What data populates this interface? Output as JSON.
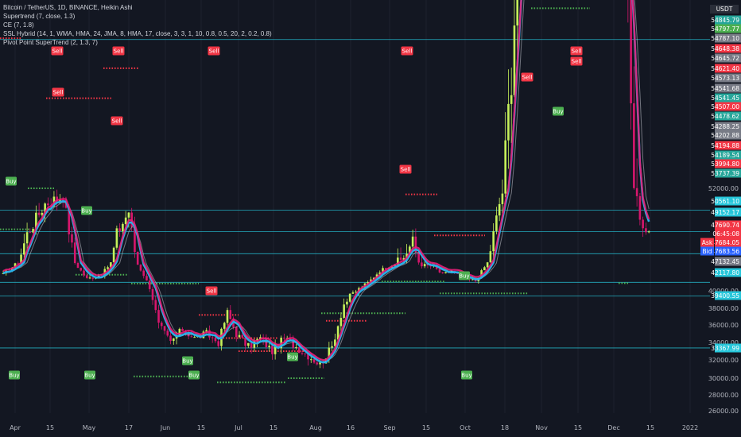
{
  "legend": {
    "title": "Bitcoin / TetherUS, 1D, BINANCE, Heikin Ashi",
    "lines": [
      "Supertrend (7, close, 1.3)",
      "CE (7, 1.8)",
      "SSL Hybrid (14, 1, WMA, HMA, 24, JMA, 8, HMA, 17, close, 3, 3, 1, 10, 0.8, 0.5, 20, 2, 0.2, 0.8)",
      "Pivot Point SuperTrend (2, 1.3, 7)"
    ]
  },
  "colors": {
    "background": "#131722",
    "bull": "#c6f15a",
    "bear": "#d6166c",
    "maBlue": "#2ab0e8",
    "maPink": "#e81e78",
    "hline": "#26c6da",
    "red": "#f23645",
    "green": "#4caf50"
  },
  "chart_data": {
    "type": "candlestick",
    "currency": "USDT",
    "x_ticks": [
      "Apr",
      "15",
      "May",
      "17",
      "Jun",
      "15",
      "Jul",
      "15",
      "Aug",
      "16",
      "Sep",
      "15",
      "Oct",
      "18",
      "Nov",
      "15",
      "Dec",
      "15",
      "2022"
    ],
    "y_ticks": [
      "52000.00",
      "40000.00",
      "38000.00",
      "36000.00",
      "34000.00",
      "32000.00",
      "30000.00",
      "28000.00",
      "26000.00"
    ],
    "price_labels": [
      {
        "text": "54845.79",
        "bg": "#26a69a"
      },
      {
        "text": "54797.77",
        "bg": "#4caf50"
      },
      {
        "text": "54787.10",
        "bg": "#787b86"
      },
      {
        "text": "54648.38",
        "bg": "#f23645"
      },
      {
        "text": "54645.72",
        "bg": "#787b86"
      },
      {
        "text": "54621.40",
        "bg": "#f23645"
      },
      {
        "text": "54573.13",
        "bg": "#787b86"
      },
      {
        "text": "54541.68",
        "bg": "#787b86"
      },
      {
        "text": "54541.45",
        "bg": "#26a69a"
      },
      {
        "text": "54507.00",
        "bg": "#f23645"
      },
      {
        "text": "54478.62",
        "bg": "#26a69a"
      },
      {
        "text": "54288.25",
        "bg": "#787b86"
      },
      {
        "text": "54202.88",
        "bg": "#787b86"
      },
      {
        "text": "54194.88",
        "bg": "#f23645"
      },
      {
        "text": "54189.54",
        "bg": "#26a69a"
      },
      {
        "text": "53994.80",
        "bg": "#f23645"
      },
      {
        "text": "53737.39",
        "bg": "#26a69a"
      },
      {
        "text": "50561.10",
        "bg": "#26c6da"
      },
      {
        "text": "49152.17",
        "bg": "#26c6da"
      },
      {
        "text": "47690.74",
        "bg": "#f23645"
      },
      {
        "text": "06:45:08",
        "bg": "#f23645"
      },
      {
        "text": "47684.05",
        "bg": "#f23645"
      },
      {
        "text": "47683.56",
        "bg": "#2962ff"
      },
      {
        "text": "47132.45",
        "bg": "#787b86"
      },
      {
        "text": "42117.80",
        "bg": "#26c6da"
      },
      {
        "text": "39400.55",
        "bg": "#26c6da"
      },
      {
        "text": "33367.99",
        "bg": "#26c6da"
      }
    ],
    "ask_label": "Ask",
    "bid_label": "Bid",
    "signals": [
      {
        "label": "Sell",
        "type": "sell"
      },
      {
        "label": "Sell",
        "type": "sell"
      },
      {
        "label": "Sell",
        "type": "sell"
      },
      {
        "label": "Sell",
        "type": "sell"
      },
      {
        "label": "Sell",
        "type": "sell"
      },
      {
        "label": "Sell",
        "type": "sell"
      },
      {
        "label": "Sell",
        "type": "sell"
      },
      {
        "label": "Sell",
        "type": "sell"
      },
      {
        "label": "Sell",
        "type": "sell"
      },
      {
        "label": "Sell",
        "type": "sell"
      },
      {
        "label": "Sell",
        "type": "sell"
      },
      {
        "label": "Buy",
        "type": "buy"
      },
      {
        "label": "Buy",
        "type": "buy"
      },
      {
        "label": "Buy",
        "type": "buy"
      },
      {
        "label": "Buy",
        "type": "buy"
      },
      {
        "label": "Buy",
        "type": "buy"
      },
      {
        "label": "Buy",
        "type": "buy"
      },
      {
        "label": "Buy",
        "type": "buy"
      },
      {
        "label": "Buy",
        "type": "buy"
      },
      {
        "label": "Buy",
        "type": "buy"
      },
      {
        "label": "Buy",
        "type": "buy"
      }
    ],
    "horizontal_levels": [
      54478.62,
      50561.1,
      49152.17,
      47690.74,
      42117.8,
      39400.55,
      33367.99
    ],
    "anchors": [
      [
        0,
        44000
      ],
      [
        8,
        49000
      ],
      [
        14,
        51000
      ],
      [
        20,
        51500
      ],
      [
        24,
        47000
      ],
      [
        28,
        43000
      ],
      [
        33,
        44000
      ],
      [
        38,
        49000
      ],
      [
        42,
        50500
      ],
      [
        47,
        44000
      ],
      [
        52,
        36000
      ],
      [
        56,
        34000
      ],
      [
        60,
        35500
      ],
      [
        64,
        34500
      ],
      [
        68,
        35000
      ],
      [
        72,
        34000
      ],
      [
        75,
        37500
      ],
      [
        78,
        35000
      ],
      [
        82,
        33500
      ],
      [
        86,
        34500
      ],
      [
        90,
        33000
      ],
      [
        94,
        34500
      ],
      [
        98,
        33500
      ],
      [
        102,
        32500
      ],
      [
        106,
        31500
      ],
      [
        110,
        33500
      ],
      [
        114,
        38500
      ],
      [
        118,
        40000
      ],
      [
        122,
        42000
      ],
      [
        126,
        45000
      ],
      [
        130,
        46500
      ],
      [
        134,
        47500
      ],
      [
        137,
        48500
      ],
      [
        140,
        46500
      ],
      [
        144,
        46000
      ],
      [
        147,
        44000
      ],
      [
        150,
        45000
      ],
      [
        154,
        43000
      ],
      [
        158,
        42500
      ],
      [
        162,
        47000
      ],
      [
        166,
        51000
      ],
      [
        170,
        54000
      ],
      [
        174,
        57500
      ],
      [
        177,
        62000
      ],
      [
        180,
        61000
      ],
      [
        184,
        62000
      ],
      [
        187,
        61500
      ],
      [
        190,
        65000
      ],
      [
        193,
        63000
      ],
      [
        197,
        61000
      ],
      [
        200,
        59000
      ],
      [
        204,
        57000
      ],
      [
        208,
        56500
      ],
      [
        211,
        52000
      ],
      [
        214,
        49500
      ],
      [
        216,
        49300
      ]
    ]
  }
}
